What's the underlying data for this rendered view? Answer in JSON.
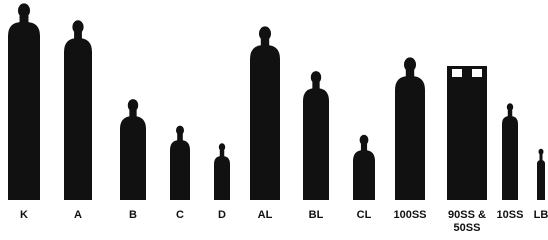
{
  "cylinders": [
    {
      "label": [
        "K"
      ]
    },
    {
      "label": [
        "A"
      ]
    },
    {
      "label": [
        "B"
      ]
    },
    {
      "label": [
        "C"
      ]
    },
    {
      "label": [
        "D"
      ]
    },
    {
      "label": [
        "AL"
      ]
    },
    {
      "label": [
        "BL"
      ]
    },
    {
      "label": [
        "CL"
      ]
    },
    {
      "label": [
        "100SS"
      ]
    },
    {
      "label": [
        "90SS &",
        "50SS"
      ]
    },
    {
      "label": [
        "10SS"
      ]
    },
    {
      "label": [
        "LB"
      ]
    }
  ]
}
